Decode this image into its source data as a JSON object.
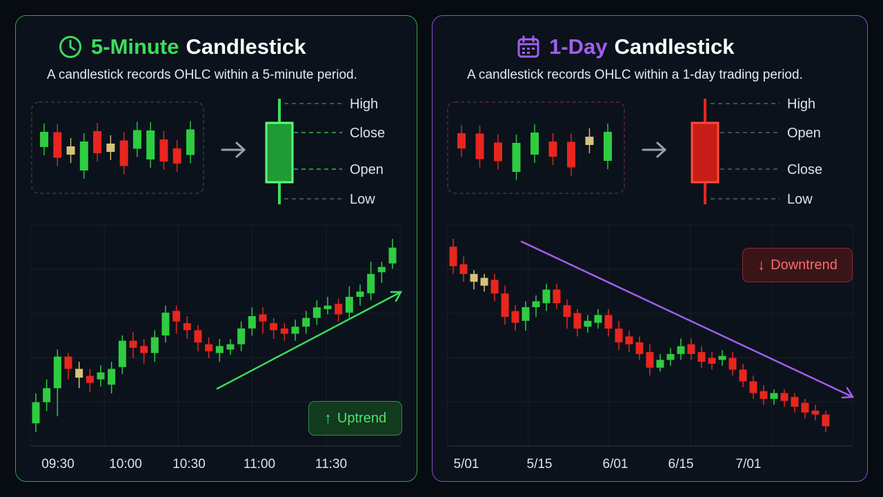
{
  "colors": {
    "green": "#2ecc40",
    "red": "#e8261e",
    "neutral": "#d6c27a",
    "left_accent": "#3ddc5a",
    "right_accent": "#a25ef0",
    "label": "#dfe3e8"
  },
  "left": {
    "title_accent": "5-Minute",
    "title_rest": "Candlestick",
    "subtitle": "A candlestick records OHLC within a 5-minute period.",
    "icon": "clock-icon",
    "legend_labels": [
      "High",
      "Close",
      "Open",
      "Low"
    ],
    "badge_label": "Uptrend"
  },
  "right": {
    "title_accent": "1-Day",
    "title_rest": "Candlestick",
    "subtitle": "A candlestick records OHLC within a 1-day trading period.",
    "icon": "calendar-icon",
    "legend_labels": [
      "High",
      "Open",
      "Close",
      "Low"
    ],
    "badge_label": "Downtrend"
  },
  "chart_data": [
    {
      "type": "candlestick",
      "x_ticks": [
        "09:30",
        "10:00",
        "10:30",
        "11:00",
        "11:30"
      ],
      "trend": "up",
      "candles": [
        {
          "o": 8,
          "c": 20,
          "h": 25,
          "l": 3,
          "d": "up"
        },
        {
          "o": 20,
          "c": 28,
          "h": 33,
          "l": 15,
          "d": "up"
        },
        {
          "o": 28,
          "c": 46,
          "h": 50,
          "l": 12,
          "d": "up"
        },
        {
          "o": 46,
          "c": 39,
          "h": 48,
          "l": 33,
          "d": "down"
        },
        {
          "o": 39,
          "c": 34,
          "h": 43,
          "l": 28,
          "d": "neutral"
        },
        {
          "o": 35,
          "c": 31,
          "h": 39,
          "l": 26,
          "d": "down"
        },
        {
          "o": 33,
          "c": 37,
          "h": 41,
          "l": 29,
          "d": "up"
        },
        {
          "o": 30,
          "c": 39,
          "h": 43,
          "l": 25,
          "d": "up"
        },
        {
          "o": 40,
          "c": 55,
          "h": 58,
          "l": 36,
          "d": "up"
        },
        {
          "o": 55,
          "c": 51,
          "h": 60,
          "l": 45,
          "d": "down"
        },
        {
          "o": 52,
          "c": 48,
          "h": 56,
          "l": 42,
          "d": "down"
        },
        {
          "o": 48,
          "c": 57,
          "h": 61,
          "l": 43,
          "d": "up"
        },
        {
          "o": 58,
          "c": 71,
          "h": 75,
          "l": 54,
          "d": "up"
        },
        {
          "o": 72,
          "c": 66,
          "h": 75,
          "l": 59,
          "d": "down"
        },
        {
          "o": 65,
          "c": 61,
          "h": 69,
          "l": 56,
          "d": "down"
        },
        {
          "o": 61,
          "c": 54,
          "h": 64,
          "l": 49,
          "d": "down"
        },
        {
          "o": 53,
          "c": 49,
          "h": 57,
          "l": 45,
          "d": "down"
        },
        {
          "o": 48,
          "c": 52,
          "h": 56,
          "l": 43,
          "d": "up"
        },
        {
          "o": 50,
          "c": 53,
          "h": 56,
          "l": 47,
          "d": "up"
        },
        {
          "o": 53,
          "c": 62,
          "h": 66,
          "l": 49,
          "d": "up"
        },
        {
          "o": 62,
          "c": 69,
          "h": 74,
          "l": 58,
          "d": "up"
        },
        {
          "o": 70,
          "c": 66,
          "h": 74,
          "l": 59,
          "d": "down"
        },
        {
          "o": 65,
          "c": 61,
          "h": 68,
          "l": 56,
          "d": "down"
        },
        {
          "o": 62,
          "c": 59,
          "h": 65,
          "l": 55,
          "d": "down"
        },
        {
          "o": 59,
          "c": 63,
          "h": 67,
          "l": 55,
          "d": "up"
        },
        {
          "o": 63,
          "c": 68,
          "h": 72,
          "l": 59,
          "d": "up"
        },
        {
          "o": 68,
          "c": 74,
          "h": 78,
          "l": 64,
          "d": "up"
        },
        {
          "o": 73,
          "c": 75,
          "h": 80,
          "l": 70,
          "d": "up"
        },
        {
          "o": 76,
          "c": 70,
          "h": 79,
          "l": 66,
          "d": "down"
        },
        {
          "o": 71,
          "c": 80,
          "h": 86,
          "l": 68,
          "d": "up"
        },
        {
          "o": 80,
          "c": 83,
          "h": 87,
          "l": 75,
          "d": "up"
        },
        {
          "o": 82,
          "c": 93,
          "h": 100,
          "l": 78,
          "d": "up"
        },
        {
          "o": 94,
          "c": 97,
          "h": 100,
          "l": 88,
          "d": "up"
        },
        {
          "o": 99,
          "c": 108,
          "h": 113,
          "l": 96,
          "d": "up"
        }
      ]
    },
    {
      "type": "candlestick",
      "x_ticks": [
        "5/01",
        "5/15",
        "6/01",
        "6/15",
        "7/01"
      ],
      "trend": "down",
      "candles": [
        {
          "o": 108,
          "c": 98,
          "h": 112,
          "l": 94,
          "d": "down"
        },
        {
          "o": 99,
          "c": 94,
          "h": 103,
          "l": 90,
          "d": "down"
        },
        {
          "o": 94,
          "c": 90,
          "h": 96,
          "l": 86,
          "d": "neutral"
        },
        {
          "o": 92,
          "c": 88,
          "h": 94,
          "l": 85,
          "d": "neutral"
        },
        {
          "o": 91,
          "c": 84,
          "h": 94,
          "l": 80,
          "d": "down"
        },
        {
          "o": 84,
          "c": 72,
          "h": 88,
          "l": 68,
          "d": "down"
        },
        {
          "o": 75,
          "c": 69,
          "h": 78,
          "l": 65,
          "d": "down"
        },
        {
          "o": 70,
          "c": 77,
          "h": 80,
          "l": 65,
          "d": "up"
        },
        {
          "o": 77,
          "c": 80,
          "h": 83,
          "l": 72,
          "d": "up"
        },
        {
          "o": 79,
          "c": 86,
          "h": 89,
          "l": 75,
          "d": "up"
        },
        {
          "o": 86,
          "c": 79,
          "h": 89,
          "l": 76,
          "d": "down"
        },
        {
          "o": 78,
          "c": 72,
          "h": 81,
          "l": 66,
          "d": "down"
        },
        {
          "o": 74,
          "c": 66,
          "h": 76,
          "l": 62,
          "d": "down"
        },
        {
          "o": 67,
          "c": 70,
          "h": 73,
          "l": 64,
          "d": "up"
        },
        {
          "o": 69,
          "c": 73,
          "h": 76,
          "l": 66,
          "d": "up"
        },
        {
          "o": 73,
          "c": 66,
          "h": 76,
          "l": 62,
          "d": "down"
        },
        {
          "o": 66,
          "c": 59,
          "h": 70,
          "l": 55,
          "d": "down"
        },
        {
          "o": 62,
          "c": 58,
          "h": 65,
          "l": 54,
          "d": "down"
        },
        {
          "o": 59,
          "c": 53,
          "h": 62,
          "l": 50,
          "d": "down"
        },
        {
          "o": 54,
          "c": 46,
          "h": 58,
          "l": 42,
          "d": "down"
        },
        {
          "o": 46,
          "c": 50,
          "h": 53,
          "l": 44,
          "d": "up"
        },
        {
          "o": 50,
          "c": 53,
          "h": 56,
          "l": 47,
          "d": "up"
        },
        {
          "o": 53,
          "c": 57,
          "h": 61,
          "l": 50,
          "d": "up"
        },
        {
          "o": 58,
          "c": 53,
          "h": 61,
          "l": 50,
          "d": "down"
        },
        {
          "o": 54,
          "c": 49,
          "h": 57,
          "l": 46,
          "d": "down"
        },
        {
          "o": 51,
          "c": 48,
          "h": 54,
          "l": 45,
          "d": "down"
        },
        {
          "o": 50,
          "c": 52,
          "h": 55,
          "l": 47,
          "d": "up"
        },
        {
          "o": 51,
          "c": 45,
          "h": 54,
          "l": 42,
          "d": "down"
        },
        {
          "o": 45,
          "c": 39,
          "h": 48,
          "l": 36,
          "d": "down"
        },
        {
          "o": 39,
          "c": 33,
          "h": 42,
          "l": 30,
          "d": "down"
        },
        {
          "o": 34,
          "c": 30,
          "h": 37,
          "l": 27,
          "d": "down"
        },
        {
          "o": 30,
          "c": 33,
          "h": 35,
          "l": 27,
          "d": "up"
        },
        {
          "o": 33,
          "c": 29,
          "h": 35,
          "l": 26,
          "d": "down"
        },
        {
          "o": 31,
          "c": 26,
          "h": 33,
          "l": 23,
          "d": "down"
        },
        {
          "o": 28,
          "c": 23,
          "h": 30,
          "l": 20,
          "d": "down"
        },
        {
          "o": 24,
          "c": 22,
          "h": 27,
          "l": 19,
          "d": "down"
        },
        {
          "o": 22,
          "c": 16,
          "h": 24,
          "l": 13,
          "d": "down"
        }
      ]
    }
  ],
  "mini_data": [
    [
      "up",
      "down",
      "neutral",
      "up",
      "down",
      "neutral",
      "down",
      "up",
      "up",
      "down",
      "down",
      "up"
    ],
    [
      "down",
      "down",
      "down",
      "up",
      "up",
      "down",
      "down",
      "neutral",
      "up"
    ]
  ]
}
